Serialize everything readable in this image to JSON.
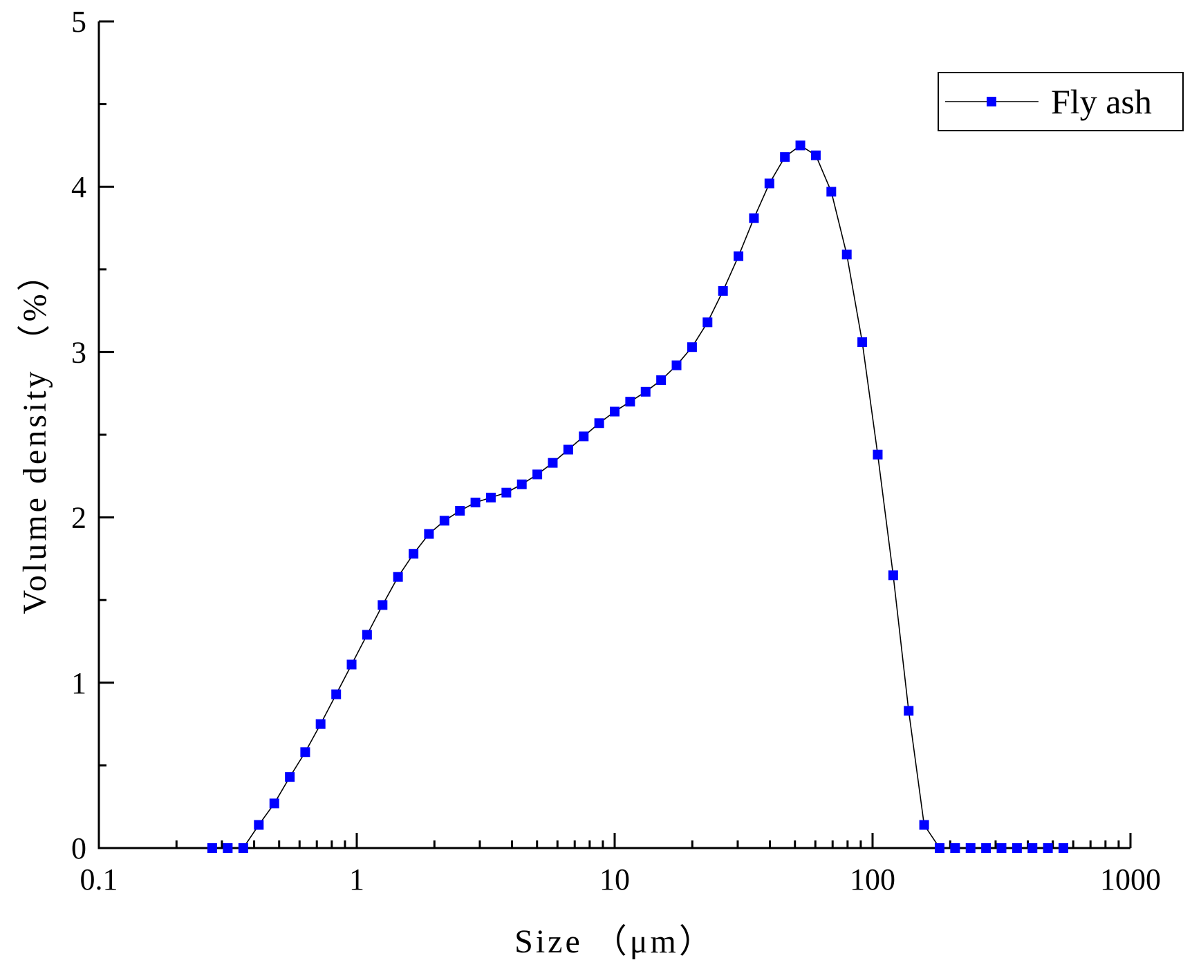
{
  "chart_data": {
    "type": "line",
    "xlabel": "Size （μm）",
    "ylabel": "Volume density （%）",
    "xscale": "log",
    "xlim": [
      0.1,
      1000
    ],
    "xticks": [
      0.1,
      1,
      10,
      100,
      1000
    ],
    "ylim": [
      0,
      5
    ],
    "yticks": [
      0,
      1,
      2,
      3,
      4,
      5
    ],
    "legend": "upper right",
    "series": [
      {
        "name": "Fly ash",
        "color": "#0000ff",
        "line_color": "#000000",
        "x": [
          0.275,
          0.316,
          0.363,
          0.417,
          0.479,
          0.55,
          0.631,
          0.724,
          0.832,
          0.955,
          1.096,
          1.259,
          1.445,
          1.66,
          1.905,
          2.188,
          2.512,
          2.884,
          3.311,
          3.802,
          4.365,
          5.012,
          5.754,
          6.607,
          7.586,
          8.71,
          10,
          11.482,
          13.183,
          15.136,
          17.378,
          19.953,
          22.909,
          26.303,
          30.2,
          34.674,
          39.811,
          45.709,
          52.481,
          60.256,
          69.183,
          79.433,
          91.201,
          104.713,
          120.226,
          138.038,
          158.489,
          181.97,
          208.93,
          239.883,
          275.423,
          316.228,
          363.078,
          416.869,
          478.63,
          549.541
        ],
        "values": [
          0,
          0,
          0,
          0.14,
          0.27,
          0.43,
          0.58,
          0.75,
          0.93,
          1.11,
          1.29,
          1.47,
          1.64,
          1.78,
          1.9,
          1.98,
          2.04,
          2.09,
          2.12,
          2.15,
          2.2,
          2.26,
          2.33,
          2.41,
          2.49,
          2.57,
          2.64,
          2.7,
          2.76,
          2.83,
          2.92,
          3.03,
          3.18,
          3.37,
          3.58,
          3.81,
          4.02,
          4.18,
          4.25,
          4.19,
          3.97,
          3.59,
          3.06,
          2.38,
          1.65,
          0.83,
          0.14,
          0,
          0,
          0,
          0,
          0,
          0,
          0,
          0,
          0
        ]
      }
    ]
  }
}
